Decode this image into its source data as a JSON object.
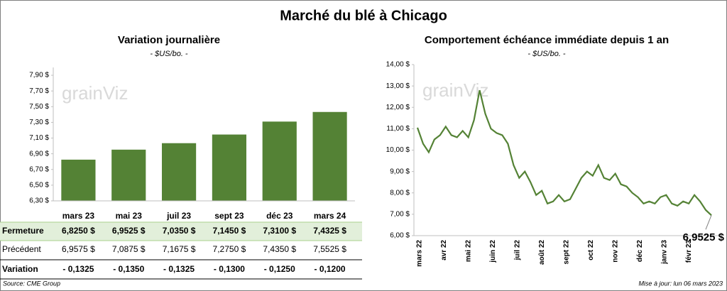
{
  "title": "Marché du blé à Chicago",
  "watermark": "grainViz",
  "source": "Source: CME Group",
  "updated": "Mise à jour: lun 06 mars 2023",
  "chart_data": [
    {
      "type": "bar",
      "title": "Variation journalière",
      "subtitle": "- $US/bo. -",
      "categories": [
        "mars 23",
        "mai 23",
        "juil 23",
        "sept 23",
        "déc 23",
        "mars 24"
      ],
      "values": [
        6.825,
        6.9525,
        7.035,
        7.145,
        7.31,
        7.4325
      ],
      "color": "#548235",
      "grid": false,
      "ylim": [
        6.3,
        8.0
      ],
      "yticks": [
        {
          "value": 6.3,
          "label": "6,30 $"
        },
        {
          "value": 6.5,
          "label": "6,50 $"
        },
        {
          "value": 6.7,
          "label": "6,70 $"
        },
        {
          "value": 6.9,
          "label": "6,90 $"
        },
        {
          "value": 7.1,
          "label": "7,10 $"
        },
        {
          "value": 7.3,
          "label": "7,30 $"
        },
        {
          "value": 7.5,
          "label": "7,50 $"
        },
        {
          "value": 7.7,
          "label": "7,70 $"
        },
        {
          "value": 7.9,
          "label": "7,90 $"
        }
      ]
    },
    {
      "type": "line",
      "title": "Comportement échéance immédiate depuis 1 an",
      "subtitle": "- $US/bo. -",
      "x_labels": [
        "mars 22",
        "avr 22",
        "mai 22",
        "juin 22",
        "juil 22",
        "août 22",
        "sept 22",
        "oct 22",
        "nov 22",
        "déc 22",
        "janv 23",
        "févr 23"
      ],
      "values": [
        11.05,
        10.3,
        9.9,
        10.5,
        10.7,
        11.1,
        10.7,
        10.6,
        10.9,
        10.6,
        11.4,
        12.8,
        11.7,
        11.0,
        10.8,
        10.7,
        10.3,
        9.3,
        8.7,
        9.0,
        8.5,
        7.9,
        8.1,
        7.5,
        7.6,
        7.9,
        7.6,
        7.7,
        8.2,
        8.7,
        9.0,
        8.8,
        9.3,
        8.7,
        8.6,
        8.9,
        8.4,
        8.3,
        8.0,
        7.8,
        7.5,
        7.6,
        7.5,
        7.8,
        7.9,
        7.5,
        7.4,
        7.6,
        7.5,
        7.9,
        7.6,
        7.2,
        6.9525
      ],
      "annotation": "6,9525 $",
      "color": "#548235",
      "grid": false,
      "ylim": [
        6.0,
        14.0
      ],
      "yticks": [
        {
          "value": 6,
          "label": "6,00 $"
        },
        {
          "value": 7,
          "label": "7,00 $"
        },
        {
          "value": 8,
          "label": "8,00 $"
        },
        {
          "value": 9,
          "label": "9,00 $"
        },
        {
          "value": 10,
          "label": "10,00 $"
        },
        {
          "value": 11,
          "label": "11,00 $"
        },
        {
          "value": 12,
          "label": "12,00 $"
        },
        {
          "value": 13,
          "label": "13,00 $"
        },
        {
          "value": 14,
          "label": "14,00 $"
        }
      ]
    }
  ],
  "table": {
    "rows": [
      {
        "label": "Fermeture",
        "cells": [
          "6,8250 $",
          "6,9525 $",
          "7,0350 $",
          "7,1450 $",
          "7,3100 $",
          "7,4325 $"
        ]
      },
      {
        "label": "Précédent",
        "cells": [
          "6,9575 $",
          "7,0875 $",
          "7,1675 $",
          "7,2750 $",
          "7,4350 $",
          "7,5525 $"
        ]
      },
      {
        "label": "Variation",
        "cells": [
          "- 0,1325",
          "- 0,1350",
          "- 0,1325",
          "- 0,1300",
          "- 0,1250",
          "- 0,1200"
        ]
      }
    ]
  }
}
